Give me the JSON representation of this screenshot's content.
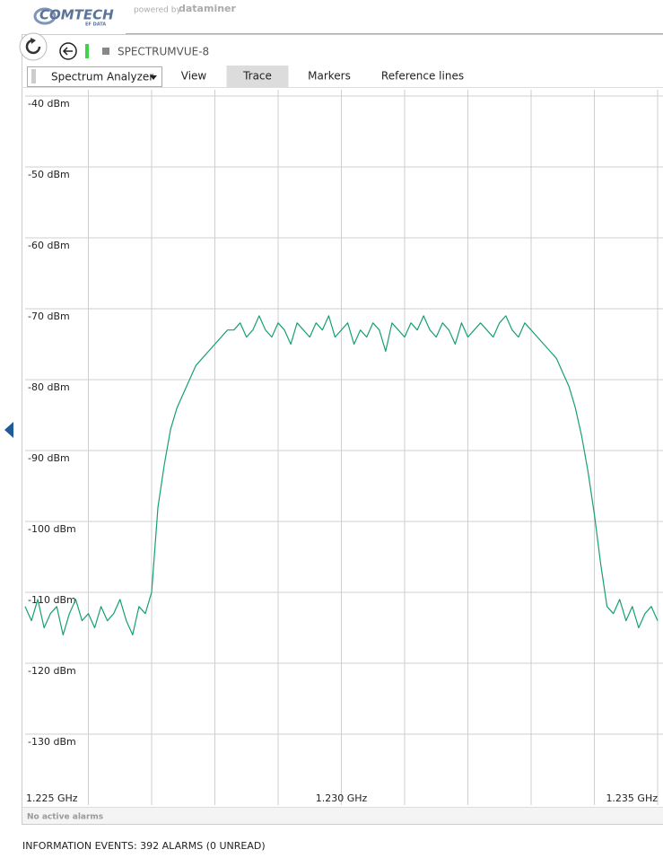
{
  "header": {
    "logo": "COMTECH",
    "logo_sub": "EF DATA",
    "powered_by": "powered by",
    "brand": "dataminer"
  },
  "panel": {
    "title": "SPECTRUMVUE-8",
    "dropdown": "Spectrum Analyzer",
    "tabs": [
      "View",
      "Trace",
      "Markers",
      "Reference lines"
    ],
    "active_tab": 1
  },
  "chart_data": {
    "type": "line",
    "color": "#16a070",
    "grid": true,
    "xlim": [
      1.225,
      1.235
    ],
    "xticks": [
      {
        "value": 1.225,
        "label": "1.225 GHz"
      },
      {
        "value": 1.226,
        "label": null
      },
      {
        "value": 1.227,
        "label": null
      },
      {
        "value": 1.228,
        "label": null
      },
      {
        "value": 1.229,
        "label": null
      },
      {
        "value": 1.23,
        "label": "1.230 GHz"
      },
      {
        "value": 1.231,
        "label": null
      },
      {
        "value": 1.232,
        "label": null
      },
      {
        "value": 1.233,
        "label": null
      },
      {
        "value": 1.234,
        "label": null
      },
      {
        "value": 1.235,
        "label": "1.235 GHz"
      }
    ],
    "ylim": [
      -140,
      -40
    ],
    "yticks": [
      {
        "value": -40,
        "label": "-40 dBm"
      },
      {
        "value": -50,
        "label": "-50 dBm"
      },
      {
        "value": -60,
        "label": "-60 dBm"
      },
      {
        "value": -70,
        "label": "-70 dBm"
      },
      {
        "value": -80,
        "label": "-80 dBm"
      },
      {
        "value": -90,
        "label": "-90 dBm"
      },
      {
        "value": -100,
        "label": "-100 dBm"
      },
      {
        "value": -110,
        "label": "-110 dBm"
      },
      {
        "value": -120,
        "label": "-120 dBm"
      },
      {
        "value": -130,
        "label": "-130 dBm"
      }
    ],
    "x": [
      1.225,
      1.2251,
      1.2252,
      1.2253,
      1.2254,
      1.2255,
      1.2256,
      1.2257,
      1.2258,
      1.2259,
      1.226,
      1.2261,
      1.2262,
      1.2263,
      1.2264,
      1.2265,
      1.2266,
      1.2267,
      1.2268,
      1.2269,
      1.227,
      1.2271,
      1.2272,
      1.2273,
      1.2274,
      1.2275,
      1.2276,
      1.2277,
      1.2278,
      1.2279,
      1.228,
      1.2281,
      1.2282,
      1.2283,
      1.2284,
      1.2285,
      1.2286,
      1.2287,
      1.2288,
      1.2289,
      1.229,
      1.2291,
      1.2292,
      1.2293,
      1.2294,
      1.2295,
      1.2296,
      1.2297,
      1.2298,
      1.2299,
      1.23,
      1.2301,
      1.2302,
      1.2303,
      1.2304,
      1.2305,
      1.2306,
      1.2307,
      1.2308,
      1.2309,
      1.231,
      1.2311,
      1.2312,
      1.2313,
      1.2314,
      1.2315,
      1.2316,
      1.2317,
      1.2318,
      1.2319,
      1.232,
      1.2321,
      1.2322,
      1.2323,
      1.2324,
      1.2325,
      1.2326,
      1.2327,
      1.2328,
      1.2329,
      1.233,
      1.2331,
      1.2332,
      1.2333,
      1.2334,
      1.2335,
      1.2336,
      1.2337,
      1.2338,
      1.2339,
      1.234,
      1.2341,
      1.2342,
      1.2343,
      1.2344,
      1.2345,
      1.2346,
      1.2347,
      1.2348,
      1.2349,
      1.235
    ],
    "values": [
      -112,
      -114,
      -111,
      -115,
      -113,
      -112,
      -116,
      -113,
      -111,
      -114,
      -113,
      -115,
      -112,
      -114,
      -113,
      -111,
      -114,
      -116,
      -112,
      -113,
      -110,
      -98,
      -92,
      -87,
      -84,
      -82,
      -80,
      -78,
      -77,
      -76,
      -75,
      -74,
      -73,
      -73,
      -72,
      -74,
      -73,
      -71,
      -73,
      -74,
      -72,
      -73,
      -75,
      -72,
      -73,
      -74,
      -72,
      -73,
      -71,
      -74,
      -73,
      -72,
      -75,
      -73,
      -74,
      -72,
      -73,
      -76,
      -72,
      -73,
      -74,
      -72,
      -73,
      -71,
      -73,
      -74,
      -72,
      -73,
      -75,
      -72,
      -74,
      -73,
      -72,
      -73,
      -74,
      -72,
      -71,
      -73,
      -74,
      -72,
      -73,
      -74,
      -75,
      -76,
      -77,
      -79,
      -81,
      -84,
      -88,
      -93,
      -99,
      -106,
      -112,
      -113,
      -111,
      -114,
      -112,
      -115,
      -113,
      -112,
      -114
    ]
  },
  "status": "No active alarms",
  "footer": "INFORMATION EVENTS: 392 ALARMS (0 UNREAD)"
}
